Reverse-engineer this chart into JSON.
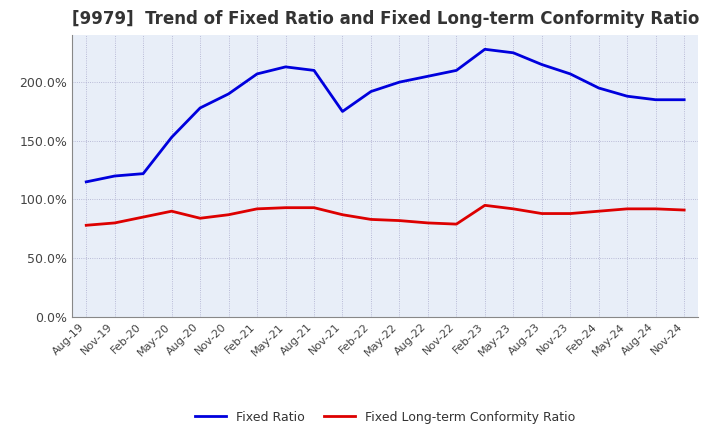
{
  "title": "[9979]  Trend of Fixed Ratio and Fixed Long-term Conformity Ratio",
  "title_fontsize": 12,
  "fixed_ratio": [
    [
      "Aug-19",
      115.0
    ],
    [
      "Nov-19",
      120.0
    ],
    [
      "Feb-20",
      122.0
    ],
    [
      "May-20",
      153.0
    ],
    [
      "Aug-20",
      178.0
    ],
    [
      "Nov-20",
      190.0
    ],
    [
      "Feb-21",
      207.0
    ],
    [
      "May-21",
      213.0
    ],
    [
      "Aug-21",
      210.0
    ],
    [
      "Nov-21",
      175.0
    ],
    [
      "Feb-22",
      192.0
    ],
    [
      "May-22",
      200.0
    ],
    [
      "Aug-22",
      205.0
    ],
    [
      "Nov-22",
      210.0
    ],
    [
      "Feb-23",
      228.0
    ],
    [
      "May-23",
      225.0
    ],
    [
      "Aug-23",
      215.0
    ],
    [
      "Nov-23",
      207.0
    ],
    [
      "Feb-24",
      195.0
    ],
    [
      "May-24",
      188.0
    ],
    [
      "Aug-24",
      185.0
    ],
    [
      "Nov-24",
      185.0
    ]
  ],
  "fixed_lt_ratio": [
    [
      "Aug-19",
      78.0
    ],
    [
      "Nov-19",
      80.0
    ],
    [
      "Feb-20",
      85.0
    ],
    [
      "May-20",
      90.0
    ],
    [
      "Aug-20",
      84.0
    ],
    [
      "Nov-20",
      87.0
    ],
    [
      "Feb-21",
      92.0
    ],
    [
      "May-21",
      93.0
    ],
    [
      "Aug-21",
      93.0
    ],
    [
      "Nov-21",
      87.0
    ],
    [
      "Feb-22",
      83.0
    ],
    [
      "May-22",
      82.0
    ],
    [
      "Aug-22",
      80.0
    ],
    [
      "Nov-22",
      79.0
    ],
    [
      "Feb-23",
      95.0
    ],
    [
      "May-23",
      92.0
    ],
    [
      "Aug-23",
      88.0
    ],
    [
      "Nov-23",
      88.0
    ],
    [
      "Feb-24",
      90.0
    ],
    [
      "May-24",
      92.0
    ],
    [
      "Aug-24",
      92.0
    ],
    [
      "Nov-24",
      91.0
    ]
  ],
  "fixed_ratio_color": "#0000DD",
  "fixed_lt_ratio_color": "#DD0000",
  "line_width": 2.0,
  "background_color": "#FFFFFF",
  "plot_bg_color": "#E8EEF8",
  "grid_color": "#AAAACC",
  "ylim": [
    0,
    240
  ],
  "yticks": [
    0,
    50,
    100,
    150,
    200
  ],
  "ytick_labels": [
    "0.0%",
    "50.0%",
    "100.0%",
    "150.0%",
    "200.0%"
  ],
  "legend_fixed_ratio": "Fixed Ratio",
  "legend_fixed_lt_ratio": "Fixed Long-term Conformity Ratio"
}
